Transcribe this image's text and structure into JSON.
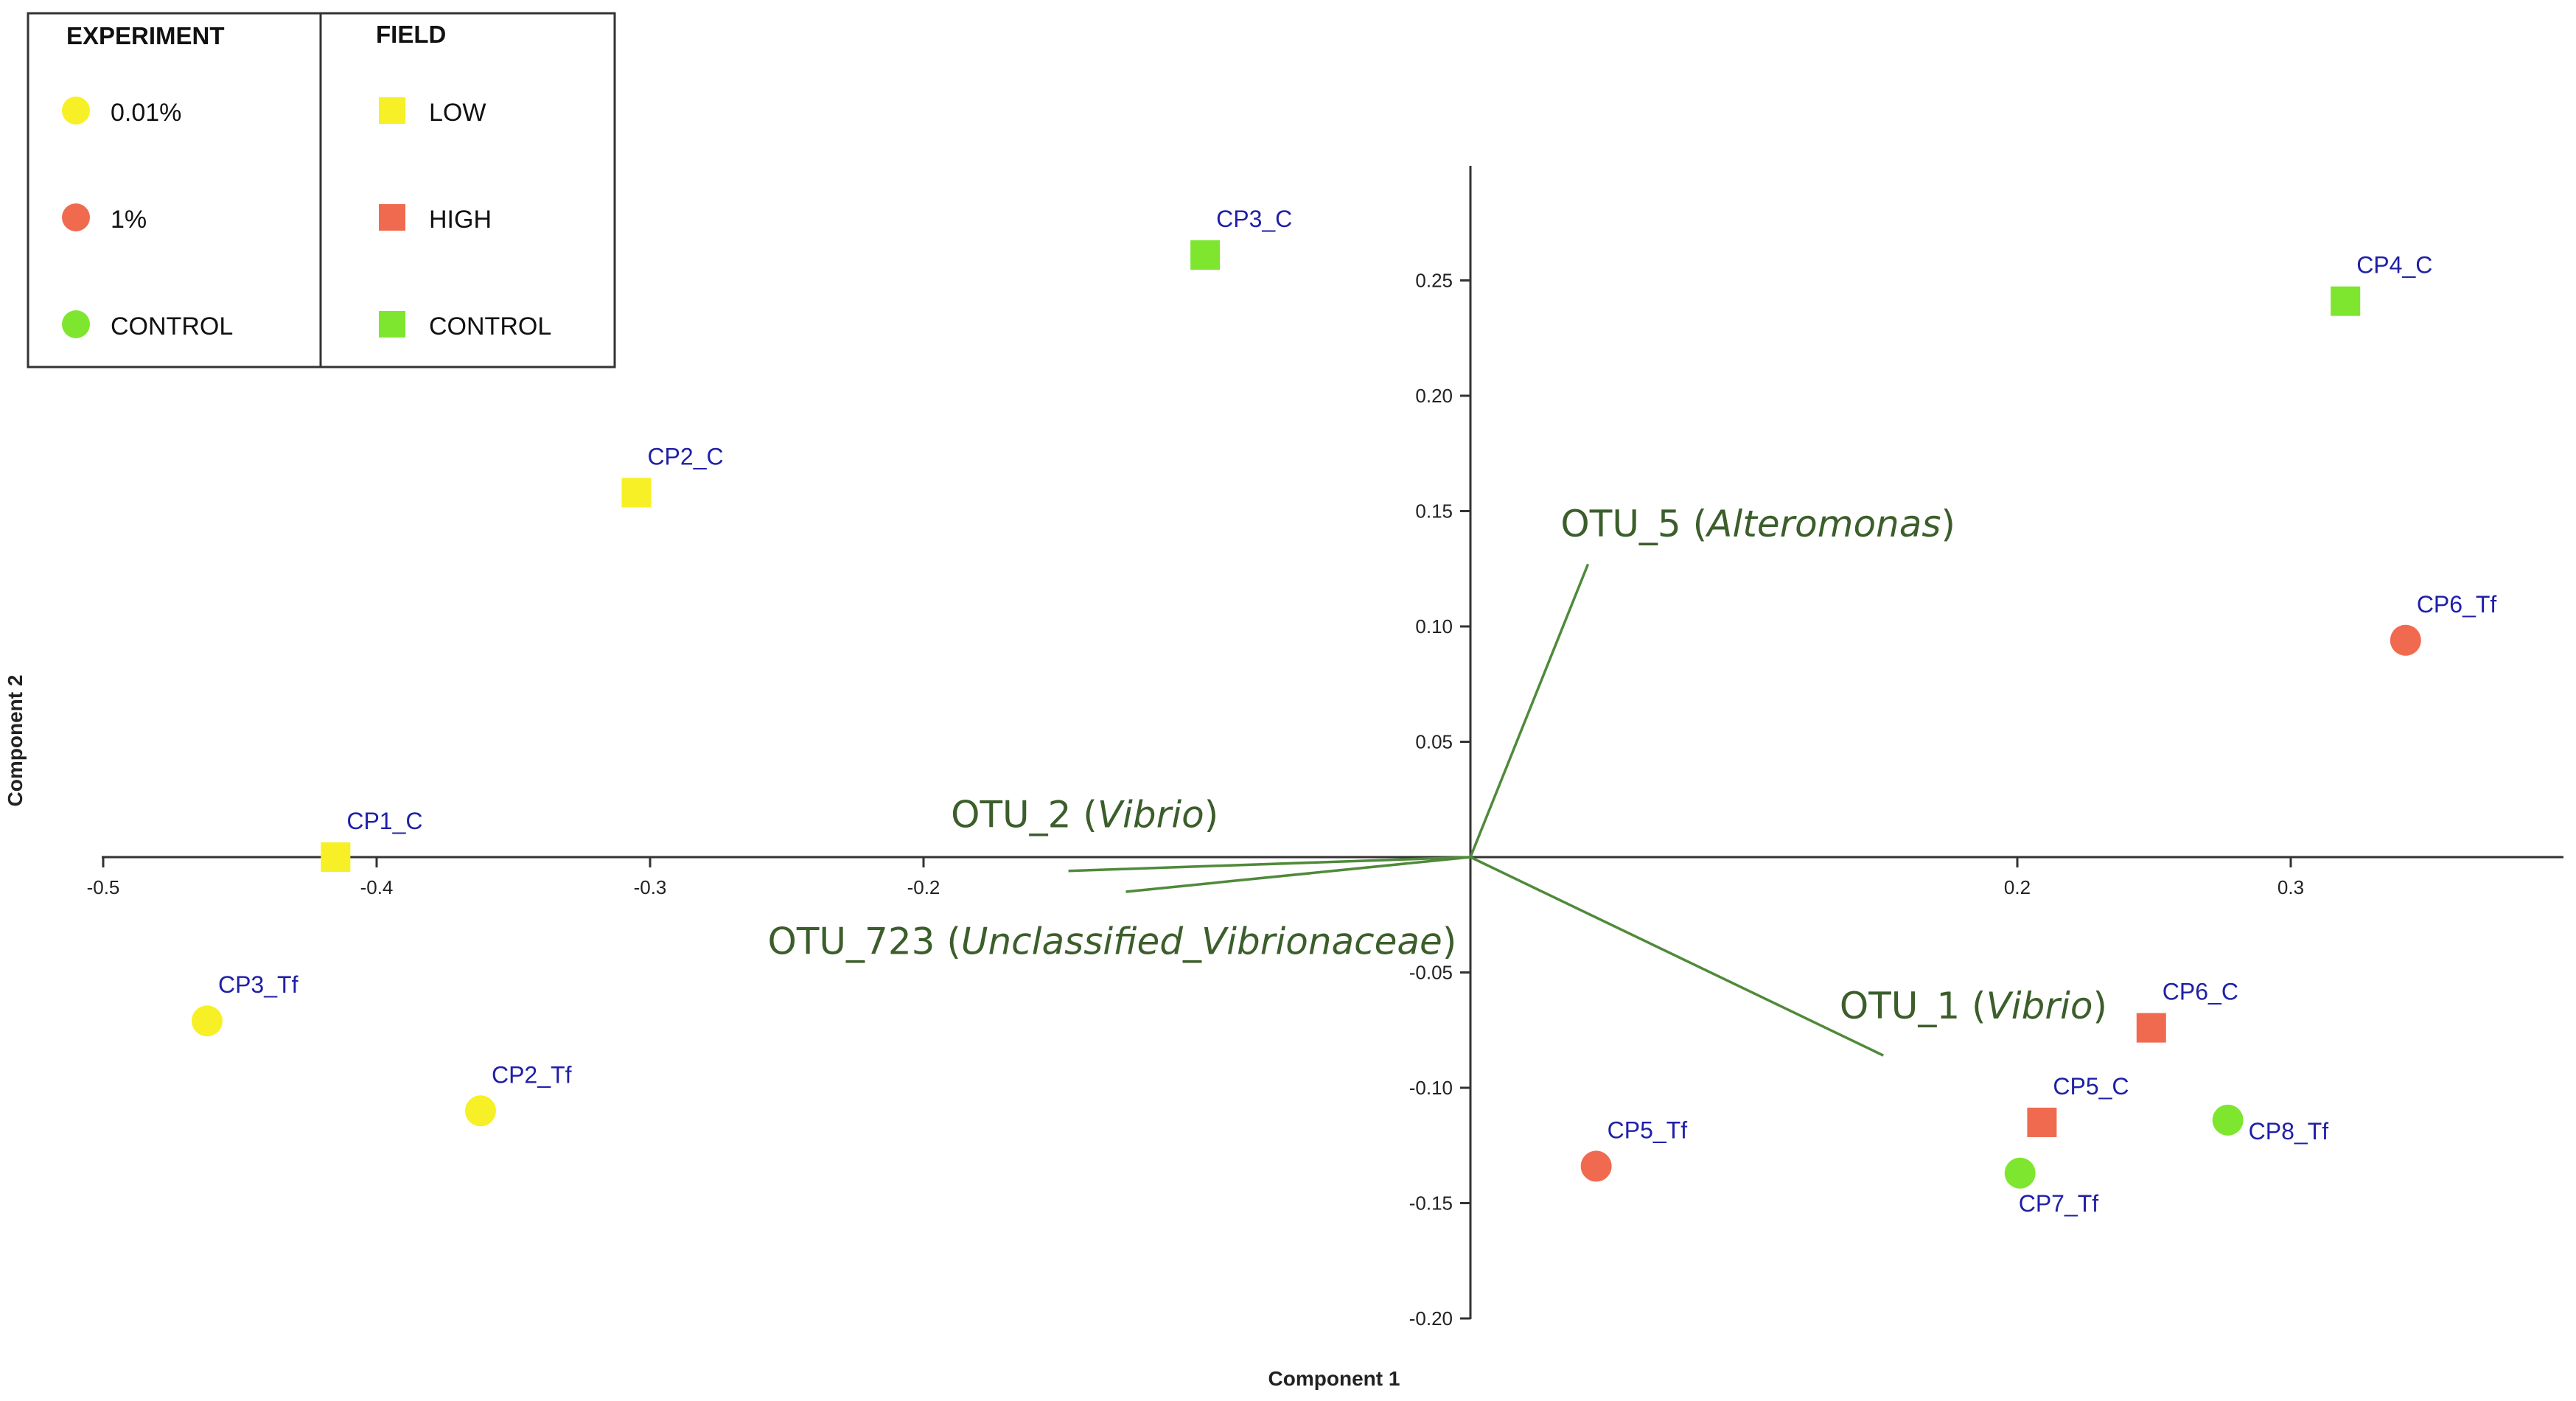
{
  "colors": {
    "yellow": "#f7f026",
    "red": "#f06a50",
    "green": "#7ee62e",
    "axis": "#333333",
    "vector": "#4f8a3a",
    "point_label": "#1f1fa8",
    "vector_label": "#3b5e2b"
  },
  "legend": {
    "experiment": {
      "title": "EXPERIMENT",
      "items": [
        {
          "label": "0.01%",
          "color": "#f7f026",
          "shape": "circle"
        },
        {
          "label": "1%",
          "color": "#f06a50",
          "shape": "circle"
        },
        {
          "label": "CONTROL",
          "color": "#7ee62e",
          "shape": "circle"
        }
      ]
    },
    "field": {
      "title": "FIELD",
      "items": [
        {
          "label": "LOW",
          "color": "#f7f026",
          "shape": "square"
        },
        {
          "label": "HIGH",
          "color": "#f06a50",
          "shape": "square"
        },
        {
          "label": "CONTROL",
          "color": "#7ee62e",
          "shape": "square"
        }
      ]
    }
  },
  "chart_data": {
    "type": "scatter",
    "title": "",
    "xlabel": "Component 1",
    "ylabel": "Component 2",
    "xlim": [
      -0.5,
      0.4
    ],
    "ylim": [
      -0.2,
      0.3
    ],
    "grid": false,
    "legend_position": "top-left",
    "x_ticks": [
      {
        "value": -0.5,
        "label": "-0.5"
      },
      {
        "value": -0.4,
        "label": "-0.4"
      },
      {
        "value": -0.3,
        "label": "-0.3"
      },
      {
        "value": -0.2,
        "label": "-0.2"
      },
      {
        "value": 0.2,
        "label": "0.2"
      },
      {
        "value": 0.3,
        "label": "0.3"
      }
    ],
    "y_ticks": [
      {
        "value": 0.25,
        "label": "0.25"
      },
      {
        "value": 0.2,
        "label": "0.20"
      },
      {
        "value": 0.15,
        "label": "0.15"
      },
      {
        "value": 0.1,
        "label": "0.10"
      },
      {
        "value": 0.05,
        "label": "0.05"
      },
      {
        "value": -0.05,
        "label": "-0.05"
      },
      {
        "value": -0.1,
        "label": "-0.10"
      },
      {
        "value": -0.15,
        "label": "-0.15"
      },
      {
        "value": -0.2,
        "label": "-0.20"
      }
    ],
    "points": [
      {
        "label": "CP3_C",
        "x": -0.097,
        "y": 0.261,
        "shape": "square",
        "color": "#7ee62e",
        "label_pos": "above"
      },
      {
        "label": "CP4_C",
        "x": 0.32,
        "y": 0.241,
        "shape": "square",
        "color": "#7ee62e",
        "label_pos": "above"
      },
      {
        "label": "CP2_C",
        "x": -0.305,
        "y": 0.158,
        "shape": "square",
        "color": "#f7f026",
        "label_pos": "above"
      },
      {
        "label": "CP1_C",
        "x": -0.415,
        "y": 0.0,
        "shape": "square",
        "color": "#f7f026",
        "label_pos": "above"
      },
      {
        "label": "CP6_Tf",
        "x": 0.342,
        "y": 0.094,
        "shape": "circle",
        "color": "#f06a50",
        "label_pos": "above"
      },
      {
        "label": "CP3_Tf",
        "x": -0.462,
        "y": -0.071,
        "shape": "circle",
        "color": "#f7f026",
        "label_pos": "above"
      },
      {
        "label": "CP2_Tf",
        "x": -0.362,
        "y": -0.11,
        "shape": "circle",
        "color": "#f7f026",
        "label_pos": "above"
      },
      {
        "label": "CP5_Tf",
        "x": 0.046,
        "y": -0.134,
        "shape": "circle",
        "color": "#f06a50",
        "label_pos": "above"
      },
      {
        "label": "CP6_C",
        "x": 0.249,
        "y": -0.074,
        "shape": "square",
        "color": "#f06a50",
        "label_pos": "above"
      },
      {
        "label": "CP5_C",
        "x": 0.209,
        "y": -0.115,
        "shape": "square",
        "color": "#f06a50",
        "label_pos": "above"
      },
      {
        "label": "CP8_Tf",
        "x": 0.277,
        "y": -0.114,
        "shape": "circle",
        "color": "#7ee62e",
        "label_pos": "right"
      },
      {
        "label": "CP7_Tf",
        "x": 0.201,
        "y": -0.137,
        "shape": "circle",
        "color": "#7ee62e",
        "label_pos": "below"
      }
    ],
    "vectors": [
      {
        "label_plain": "OTU_5 ",
        "label_italic": "Alteromonas",
        "x": 0.043,
        "y": 0.127,
        "label_x": 0.033,
        "label_y": 0.139
      },
      {
        "label_plain": "OTU_2 ",
        "label_italic": "Vibrio",
        "x": -0.147,
        "y": -0.006,
        "label_x": -0.19,
        "label_y": 0.013
      },
      {
        "label_plain": "OTU_723 ",
        "label_italic": "Unclassified_Vibrionaceae",
        "x": -0.126,
        "y": -0.015,
        "label_x": -0.257,
        "label_y": -0.042
      },
      {
        "label_plain": "OTU_1 ",
        "label_italic": "Vibrio",
        "x": 0.151,
        "y": -0.086,
        "label_x": 0.135,
        "label_y": -0.07
      }
    ]
  }
}
